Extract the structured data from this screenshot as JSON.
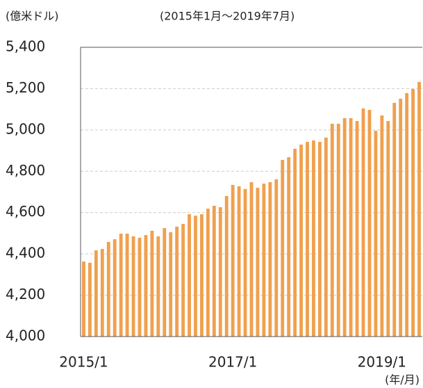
{
  "chart_data": {
    "type": "bar",
    "y_label": "(億米ドル)",
    "subtitle": "(2015年1月〜2019年7月)",
    "x_label": "(年/月)",
    "categories": [
      "2015/1",
      null,
      null,
      null,
      null,
      null,
      null,
      null,
      null,
      null,
      null,
      null,
      null,
      null,
      null,
      null,
      null,
      null,
      null,
      null,
      null,
      null,
      null,
      null,
      "2017/1",
      null,
      null,
      null,
      null,
      null,
      null,
      null,
      null,
      null,
      null,
      null,
      null,
      null,
      null,
      null,
      null,
      null,
      null,
      null,
      null,
      null,
      null,
      null,
      "2019/1",
      null,
      null,
      null,
      null,
      null,
      null
    ],
    "values": [
      4363,
      4357,
      4417,
      4424,
      4458,
      4471,
      4498,
      4498,
      4485,
      4478,
      4491,
      4512,
      4485,
      4525,
      4505,
      4532,
      4545,
      4592,
      4585,
      4592,
      4619,
      4633,
      4626,
      4680,
      4734,
      4727,
      4714,
      4747,
      4720,
      4740,
      4747,
      4761,
      4855,
      4868,
      4909,
      4929,
      4942,
      4949,
      4942,
      4963,
      5030,
      5030,
      5057,
      5057,
      5043,
      5104,
      5097,
      4996,
      5070,
      5043,
      5131,
      5151,
      5178,
      5198,
      5232
    ],
    "color": "#f0a04e",
    "ylim": [
      4000,
      5400
    ],
    "yticks": [
      {
        "value": 4000,
        "label": "4,000"
      },
      {
        "value": 4200,
        "label": "4,200"
      },
      {
        "value": 4400,
        "label": "4,400"
      },
      {
        "value": 4600,
        "label": "4,600"
      },
      {
        "value": 4800,
        "label": "4,800"
      },
      {
        "value": 5000,
        "label": "5,000"
      },
      {
        "value": 5200,
        "label": "5,200"
      },
      {
        "value": 5400,
        "label": "5,400"
      }
    ],
    "grid": true
  }
}
